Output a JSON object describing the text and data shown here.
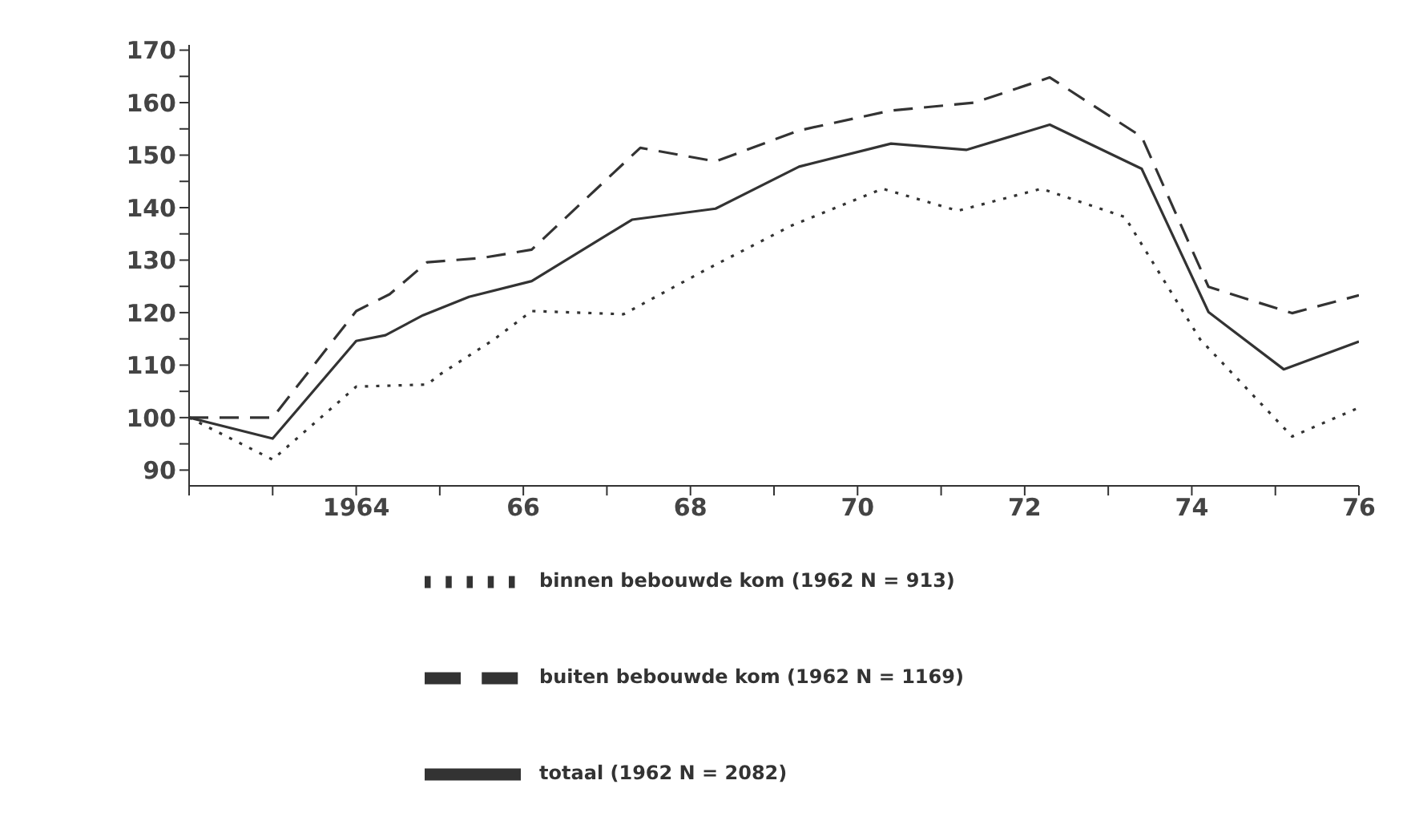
{
  "chart_data": {
    "type": "line",
    "xlim": [
      1962,
      1976
    ],
    "xticks": [
      {
        "value": 1962,
        "label": null
      },
      {
        "value": 1963,
        "label": null
      },
      {
        "value": 1964,
        "label": "1964"
      },
      {
        "value": 1965,
        "label": null
      },
      {
        "value": 1966,
        "label": "66"
      },
      {
        "value": 1967,
        "label": null
      },
      {
        "value": 1968,
        "label": "68"
      },
      {
        "value": 1969,
        "label": null
      },
      {
        "value": 1970,
        "label": "70"
      },
      {
        "value": 1971,
        "label": null
      },
      {
        "value": 1972,
        "label": "72"
      },
      {
        "value": 1973,
        "label": null
      },
      {
        "value": 1974,
        "label": "74"
      },
      {
        "value": 1975,
        "label": null
      },
      {
        "value": 1976,
        "label": "76"
      }
    ],
    "ylim": [
      87,
      171
    ],
    "yticks": [
      90,
      {
        "value": 95,
        "label": null
      },
      100,
      {
        "value": 105,
        "label": null
      },
      110,
      {
        "value": 115,
        "label": null
      },
      120,
      {
        "value": 125,
        "label": null
      },
      130,
      {
        "value": 135,
        "label": null
      },
      140,
      {
        "value": 145,
        "label": null
      },
      150,
      {
        "value": 155,
        "label": null
      },
      160,
      {
        "value": 165,
        "label": null
      },
      170
    ],
    "grid": false,
    "legend": "bottom",
    "marker": "none",
    "series": [
      {
        "name": "totaal (1962 N = 2082)",
        "color": "#333333",
        "line_style": "solid",
        "x": [
          1962,
          1963,
          1964,
          1964.35,
          1964.8,
          1965.35,
          1966.1,
          1967.3,
          1968.3,
          1969.3,
          1970.4,
          1971.3,
          1972.3,
          1973.4,
          1974.2,
          1975.1,
          1976
        ],
        "values": [
          100,
          96,
          114.6,
          115.7,
          119.5,
          123,
          126,
          137.7,
          139.8,
          147.8,
          152.2,
          151,
          155.8,
          147.4,
          120.1,
          109.2,
          114.5
        ]
      },
      {
        "name": "buiten bebouwde kom (1962 N = 1169)",
        "color": "#333333",
        "line_style": "dashed",
        "x": [
          1962,
          1963,
          1964,
          1964.4,
          1964.85,
          1965.5,
          1966.1,
          1967.4,
          1968.3,
          1969.3,
          1970.4,
          1971.4,
          1972.3,
          1973.4,
          1974.2,
          1975.2,
          1976
        ],
        "values": [
          100,
          100,
          120.3,
          123.5,
          129.6,
          130.4,
          132,
          151.4,
          148.8,
          154.7,
          158.5,
          160,
          164.8,
          153.5,
          124.9,
          119.9,
          123.3
        ]
      },
      {
        "name": "binnen bebouwde kom (1962 N = 913)",
        "color": "#333333",
        "line_style": "dotted",
        "x": [
          1962,
          1963,
          1964,
          1964.85,
          1965,
          1965.65,
          1966.1,
          1967.2,
          1968.2,
          1969.2,
          1970.3,
          1971.2,
          1972.2,
          1973.2,
          1974.1,
          1975.2,
          1976
        ],
        "values": [
          100,
          92,
          105.9,
          106.3,
          108.2,
          114.9,
          120.3,
          119.7,
          128.3,
          136.5,
          143.6,
          139.4,
          143.6,
          138.2,
          114.9,
          96.4,
          101.9
        ]
      }
    ]
  }
}
